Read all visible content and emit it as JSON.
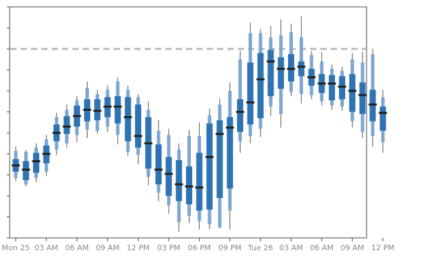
{
  "chart_data": {
    "type": "box",
    "title": "",
    "xlabel": "",
    "ylabel": "",
    "xlim": [
      -0.6,
      34.4
    ],
    "ylim": [
      0.0,
      11.0
    ],
    "grid": false,
    "threshold": 9.0,
    "x_ticks": [
      {
        "pos": 0,
        "label": "Mon 25"
      },
      {
        "pos": 3,
        "label": "03 AM"
      },
      {
        "pos": 6,
        "label": "06 AM"
      },
      {
        "pos": 9,
        "label": "09 AM"
      },
      {
        "pos": 12,
        "label": "12 PM"
      },
      {
        "pos": 15,
        "label": "03 PM"
      },
      {
        "pos": 18,
        "label": "06 PM"
      },
      {
        "pos": 21,
        "label": "09 PM"
      },
      {
        "pos": 24,
        "label": "Tue 26"
      },
      {
        "pos": 27,
        "label": "03 AM"
      },
      {
        "pos": 30,
        "label": "06 AM"
      },
      {
        "pos": 33,
        "label": "09 AM"
      },
      {
        "pos": 36,
        "label": "12 PM"
      }
    ],
    "boxes": [
      {
        "t": 0,
        "median": 3.45,
        "q1": 3.15,
        "q3": 3.75,
        "p10": 2.85,
        "p90": 4.15,
        "min": 2.7,
        "max": 4.35
      },
      {
        "t": 1,
        "median": 3.25,
        "q1": 2.75,
        "q3": 3.65,
        "p10": 2.55,
        "p90": 4.1,
        "min": 2.45,
        "max": 4.2
      },
      {
        "t": 2,
        "median": 3.65,
        "q1": 3.1,
        "q3": 4.05,
        "p10": 2.85,
        "p90": 4.3,
        "min": 2.65,
        "max": 4.5
      },
      {
        "t": 3,
        "median": 4.0,
        "q1": 3.55,
        "q3": 4.4,
        "p10": 3.15,
        "p90": 4.7,
        "min": 2.95,
        "max": 4.9
      },
      {
        "t": 4,
        "median": 5.0,
        "q1": 4.6,
        "q3": 5.4,
        "p10": 4.2,
        "p90": 5.75,
        "min": 3.95,
        "max": 5.95
      },
      {
        "t": 5,
        "median": 5.3,
        "q1": 4.95,
        "q3": 5.8,
        "p10": 4.5,
        "p90": 6.1,
        "min": 4.3,
        "max": 6.35
      },
      {
        "t": 6,
        "median": 5.8,
        "q1": 5.3,
        "q3": 6.3,
        "p10": 4.9,
        "p90": 6.55,
        "min": 4.55,
        "max": 6.75
      },
      {
        "t": 7,
        "median": 6.1,
        "q1": 5.55,
        "q3": 6.6,
        "p10": 5.15,
        "p90": 7.15,
        "min": 4.75,
        "max": 7.45
      },
      {
        "t": 8,
        "median": 6.05,
        "q1": 5.6,
        "q3": 6.6,
        "p10": 5.1,
        "p90": 6.85,
        "min": 4.95,
        "max": 7.05
      },
      {
        "t": 9,
        "median": 6.25,
        "q1": 5.75,
        "q3": 6.7,
        "p10": 5.3,
        "p90": 7.05,
        "min": 5.05,
        "max": 7.25
      },
      {
        "t": 10,
        "median": 6.25,
        "q1": 5.45,
        "q3": 6.75,
        "p10": 4.9,
        "p90": 7.45,
        "min": 4.45,
        "max": 7.65
      },
      {
        "t": 11,
        "median": 5.75,
        "q1": 4.6,
        "q3": 6.7,
        "p10": 4.1,
        "p90": 7.05,
        "min": 3.9,
        "max": 7.25
      },
      {
        "t": 12,
        "median": 4.85,
        "q1": 4.3,
        "q3": 6.35,
        "p10": 3.95,
        "p90": 6.7,
        "min": 3.5,
        "max": 6.85
      },
      {
        "t": 13,
        "median": 4.5,
        "q1": 3.3,
        "q3": 5.75,
        "p10": 2.9,
        "p90": 6.1,
        "min": 2.5,
        "max": 6.5
      },
      {
        "t": 14,
        "median": 3.25,
        "q1": 2.55,
        "q3": 4.45,
        "p10": 2.15,
        "p90": 5.1,
        "min": 1.75,
        "max": 5.6
      },
      {
        "t": 15,
        "median": 3.05,
        "q1": 2.0,
        "q3": 3.85,
        "p10": 1.55,
        "p90": 4.9,
        "min": 1.15,
        "max": 5.2
      },
      {
        "t": 16,
        "median": 2.55,
        "q1": 1.75,
        "q3": 3.7,
        "p10": 0.75,
        "p90": 4.2,
        "min": 0.3,
        "max": 4.5
      },
      {
        "t": 17,
        "median": 2.45,
        "q1": 1.6,
        "q3": 3.4,
        "p10": 1.05,
        "p90": 4.85,
        "min": 0.7,
        "max": 5.15
      },
      {
        "t": 18,
        "median": 2.4,
        "q1": 1.3,
        "q3": 4.05,
        "p10": 0.8,
        "p90": 4.85,
        "min": 0.4,
        "max": 5.5
      },
      {
        "t": 19,
        "median": 3.85,
        "q1": 1.35,
        "q3": 5.45,
        "p10": 0.65,
        "p90": 5.85,
        "min": 0.4,
        "max": 6.15
      },
      {
        "t": 20,
        "median": 4.95,
        "q1": 1.9,
        "q3": 5.6,
        "p10": 0.5,
        "p90": 6.35,
        "min": 0.45,
        "max": 6.65
      },
      {
        "t": 21,
        "median": 5.25,
        "q1": 2.35,
        "q3": 5.75,
        "p10": 1.3,
        "p90": 7.0,
        "min": 0.4,
        "max": 7.4
      },
      {
        "t": 22,
        "median": 6.0,
        "q1": 5.05,
        "q3": 6.6,
        "p10": 4.6,
        "p90": 8.5,
        "min": 4.05,
        "max": 8.9
      },
      {
        "t": 23,
        "median": 6.45,
        "q1": 5.4,
        "q3": 8.35,
        "p10": 4.85,
        "p90": 9.75,
        "min": 4.5,
        "max": 10.25
      },
      {
        "t": 24,
        "median": 7.55,
        "q1": 5.7,
        "q3": 8.8,
        "p10": 5.2,
        "p90": 9.75,
        "min": 4.8,
        "max": 9.95
      },
      {
        "t": 25,
        "median": 8.4,
        "q1": 6.75,
        "q3": 8.95,
        "p10": 6.25,
        "p90": 9.55,
        "min": 5.8,
        "max": 10.1
      },
      {
        "t": 26,
        "median": 8.05,
        "q1": 7.1,
        "q3": 8.6,
        "p10": 5.9,
        "p90": 9.65,
        "min": 5.25,
        "max": 10.4
      },
      {
        "t": 27,
        "median": 8.05,
        "q1": 7.45,
        "q3": 8.75,
        "p10": 6.95,
        "p90": 9.8,
        "min": 6.75,
        "max": 10.2
      },
      {
        "t": 28,
        "median": 8.15,
        "q1": 7.7,
        "q3": 8.4,
        "p10": 6.85,
        "p90": 9.55,
        "min": 6.4,
        "max": 10.55
      },
      {
        "t": 29,
        "median": 7.65,
        "q1": 7.25,
        "q3": 8.05,
        "p10": 6.8,
        "p90": 8.7,
        "min": 6.6,
        "max": 8.9
      },
      {
        "t": 30,
        "median": 7.35,
        "q1": 6.9,
        "q3": 7.8,
        "p10": 6.5,
        "p90": 8.4,
        "min": 6.3,
        "max": 8.85
      },
      {
        "t": 31,
        "median": 7.35,
        "q1": 6.55,
        "q3": 7.75,
        "p10": 6.3,
        "p90": 8.05,
        "min": 6.1,
        "max": 8.25
      },
      {
        "t": 32,
        "median": 7.2,
        "q1": 6.6,
        "q3": 7.7,
        "p10": 6.25,
        "p90": 7.95,
        "min": 6.05,
        "max": 8.15
      },
      {
        "t": 33,
        "median": 7.0,
        "q1": 6.0,
        "q3": 7.8,
        "p10": 5.55,
        "p90": 8.5,
        "min": 5.25,
        "max": 8.8
      },
      {
        "t": 34,
        "median": 6.8,
        "q1": 5.9,
        "q3": 7.4,
        "p10": 5.05,
        "p90": 8.35,
        "min": 4.75,
        "max": 8.85
      },
      {
        "t": 35,
        "median": 6.35,
        "q1": 5.55,
        "q3": 7.05,
        "p10": 4.85,
        "p90": 8.75,
        "min": 4.35,
        "max": 9.0
      },
      {
        "t": 36,
        "median": 5.95,
        "q1": 5.1,
        "q3": 6.25,
        "p10": 4.55,
        "p90": 6.7,
        "min": 4.05,
        "max": 7.05
      }
    ],
    "colors": {
      "box": "#2f73b3",
      "whisker_band": "#7fa6d1",
      "median": "#222222",
      "whisker_line": "#555555",
      "threshold": "#bbbbbb",
      "axis": "#444444"
    }
  }
}
